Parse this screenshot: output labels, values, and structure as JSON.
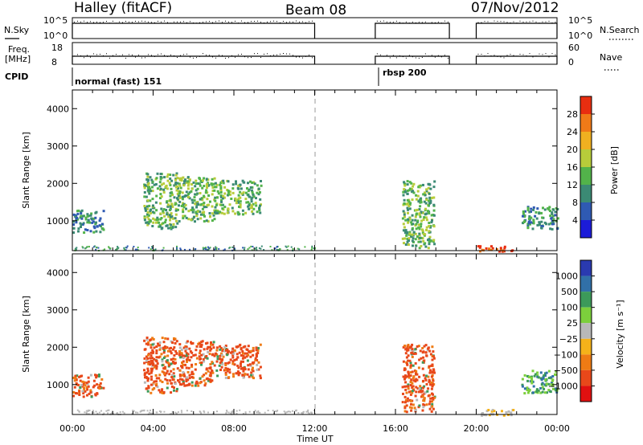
{
  "header": {
    "title": "Halley (fitACF)",
    "beam": "Beam 08",
    "date": "07/Nov/2012"
  },
  "strips": {
    "nsky_label": "N.Sky",
    "nsky_ticks": [
      "10^5",
      "10^0"
    ],
    "nsearch_label": "N.Search",
    "nsearch_ticks": [
      "10^5",
      "10^0"
    ],
    "freq_label_1": "Freq.",
    "freq_label_2": "[MHz]",
    "freq_ticks": [
      "18",
      "8"
    ],
    "nave_label": "Nave",
    "nave_ticks": [
      "60",
      "0"
    ],
    "cpid_label": "CPID",
    "cpid_modes": [
      {
        "name": "normal (fast) 151",
        "start_hour": 0,
        "end_hour": 15
      },
      {
        "name": "rbsp 200",
        "start_hour": 15,
        "end_hour": 24
      }
    ],
    "data_segments_hours": [
      [
        0,
        12
      ],
      [
        15,
        18.67
      ],
      [
        20.0,
        24
      ]
    ]
  },
  "chart_data": [
    {
      "type": "heatmap",
      "title": "Power",
      "xlabel": "",
      "ylabel": "Slant Range [km]",
      "xlim": [
        0,
        24
      ],
      "ylim": [
        200,
        4500
      ],
      "yticks": [
        "1000",
        "2000",
        "3000",
        "4000"
      ],
      "colorbar_label": "Power [dB]",
      "colorbar_ticks": [
        "28",
        "24",
        "20",
        "16",
        "12",
        "8",
        "4"
      ],
      "colorbar_colors": [
        "#1c1cd8",
        "#2f5ab3",
        "#3b8a74",
        "#52b34a",
        "#b7cc3a",
        "#f0b020",
        "#f07a18",
        "#e82e10"
      ],
      "echo_regions": [
        {
          "hours": [
            0.0,
            1.5
          ],
          "range_km": [
            700,
            1300
          ],
          "level": 2
        },
        {
          "hours": [
            3.5,
            5.2
          ],
          "range_km": [
            800,
            2300
          ],
          "level": 3
        },
        {
          "hours": [
            5.2,
            7.0
          ],
          "range_km": [
            1000,
            2200
          ],
          "level": 3
        },
        {
          "hours": [
            7.0,
            9.3
          ],
          "range_km": [
            1200,
            2100
          ],
          "level": 3
        },
        {
          "hours": [
            16.3,
            17.9
          ],
          "range_km": [
            300,
            2100
          ],
          "level": 3
        },
        {
          "hours": [
            20.0,
            21.8
          ],
          "range_km": [
            200,
            350
          ],
          "level": 7
        },
        {
          "hours": [
            22.2,
            24.0
          ],
          "range_km": [
            800,
            1400
          ],
          "level": 2
        }
      ]
    },
    {
      "type": "heatmap",
      "title": "Velocity",
      "xlabel": "Time UT",
      "ylabel": "Slant Range [km]",
      "xlim": [
        0,
        24
      ],
      "ylim": [
        200,
        4500
      ],
      "xticks": [
        "00:00",
        "04:00",
        "08:00",
        "12:00",
        "16:00",
        "20:00",
        "00:00"
      ],
      "yticks": [
        "1000",
        "2000",
        "3000",
        "4000"
      ],
      "colorbar_label": "Velocity [m s⁻¹]",
      "colorbar_ticks": [
        "1000",
        "500",
        "100",
        "25",
        "−25",
        "−100",
        "−500",
        "−1000"
      ],
      "colorbar_colors": [
        "#2a3ab0",
        "#3170a8",
        "#3c9a5a",
        "#7ccf3c",
        "#b8b8b8",
        "#f5b21a",
        "#ee7b14",
        "#e8481a",
        "#e01010"
      ],
      "echo_regions": [
        {
          "hours": [
            0.0,
            1.5
          ],
          "range_km": [
            700,
            1300
          ],
          "class": "away"
        },
        {
          "hours": [
            3.5,
            5.2
          ],
          "range_km": [
            800,
            2300
          ],
          "class": "away"
        },
        {
          "hours": [
            5.2,
            7.0
          ],
          "range_km": [
            1000,
            2200
          ],
          "class": "away"
        },
        {
          "hours": [
            7.0,
            9.3
          ],
          "range_km": [
            1200,
            2100
          ],
          "class": "away"
        },
        {
          "hours": [
            16.3,
            17.9
          ],
          "range_km": [
            300,
            2100
          ],
          "class": "away"
        },
        {
          "hours": [
            20.0,
            21.8
          ],
          "range_km": [
            200,
            350
          ],
          "class": "ground"
        },
        {
          "hours": [
            22.2,
            24.0
          ],
          "range_km": [
            800,
            1400
          ],
          "class": "toward"
        }
      ]
    }
  ]
}
